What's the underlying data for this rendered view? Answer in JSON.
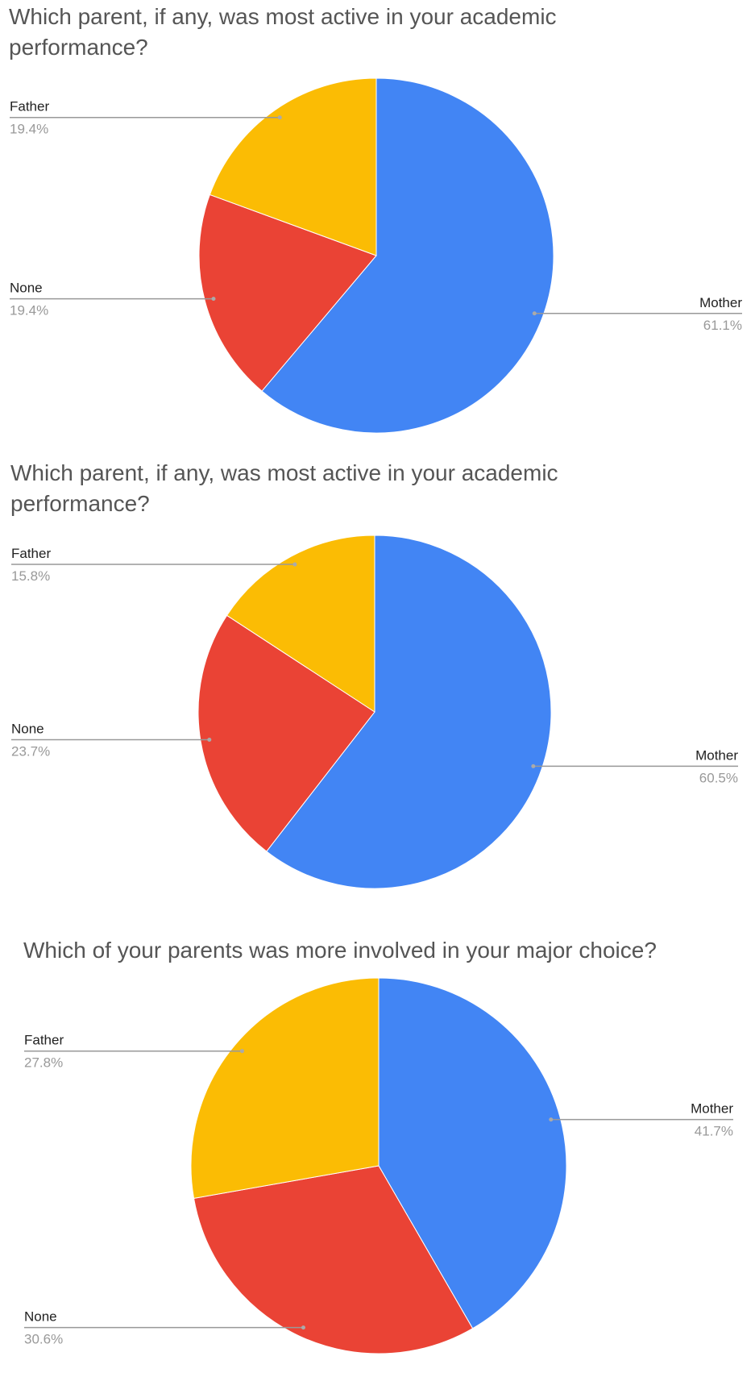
{
  "chart_data": [
    {
      "type": "pie",
      "title": "Which parent, if any, was most active in your academic performance?",
      "categories": [
        "Mother",
        "None",
        "Father"
      ],
      "values": [
        61.1,
        19.4,
        19.4
      ],
      "value_labels": [
        "61.1%",
        "19.4%",
        "19.4%"
      ],
      "colors": [
        "#4285f4",
        "#ea4335",
        "#fbbc04"
      ]
    },
    {
      "type": "pie",
      "title": "Which parent, if any, was most active in your academic performance?",
      "categories": [
        "Mother",
        "None",
        "Father"
      ],
      "values": [
        60.5,
        23.7,
        15.8
      ],
      "value_labels": [
        "60.5%",
        "23.7%",
        "15.8%"
      ],
      "colors": [
        "#4285f4",
        "#ea4335",
        "#fbbc04"
      ]
    },
    {
      "type": "pie",
      "title": "Which of your parents was more involved in your major choice?",
      "categories": [
        "Mother",
        "None",
        "Father"
      ],
      "values": [
        41.7,
        30.6,
        27.8
      ],
      "value_labels": [
        "41.7%",
        "30.6%",
        "27.8%"
      ],
      "colors": [
        "#4285f4",
        "#ea4335",
        "#fbbc04"
      ]
    }
  ]
}
